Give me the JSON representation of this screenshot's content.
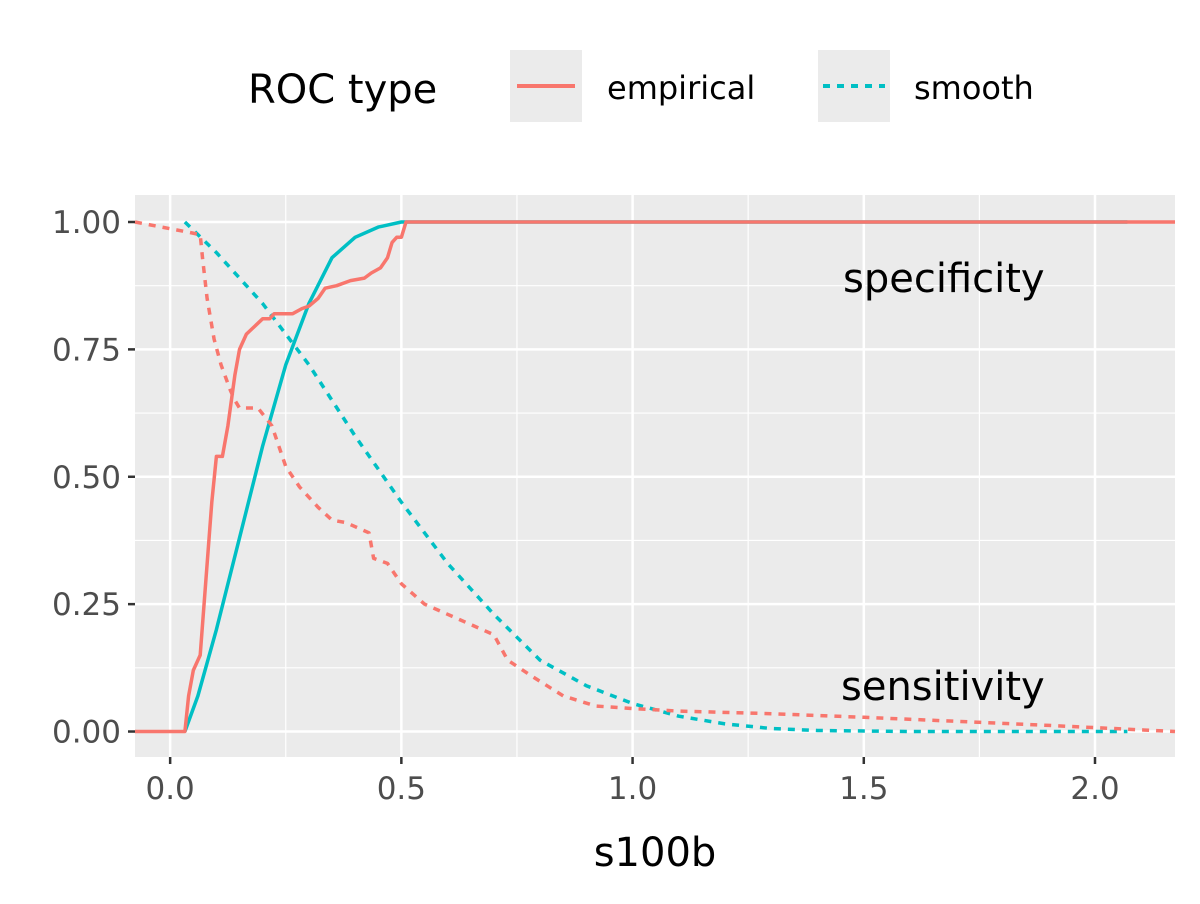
{
  "chart_data": {
    "type": "line",
    "title": "",
    "xlabel": "s100b",
    "ylabel": "",
    "xlim": [
      -0.076,
      2.173
    ],
    "ylim": [
      -0.05,
      1.053
    ],
    "x_ticks": [
      0.0,
      0.5,
      1.0,
      1.5,
      2.0
    ],
    "x_tick_labels": [
      "0.0",
      "0.5",
      "1.0",
      "1.5",
      "2.0"
    ],
    "y_ticks": [
      0,
      0.25,
      0.5,
      0.75,
      1.0
    ],
    "y_tick_labels": [
      "0.00",
      "0.25",
      "0.50",
      "0.75",
      "1.00"
    ],
    "grid": true,
    "legend": {
      "title": "ROC type",
      "placement": "top",
      "entries": [
        {
          "label": "empirical",
          "color": "#F8766D",
          "dash": "solid"
        },
        {
          "label": "smooth",
          "color": "#00BFC4",
          "dash": "dotted"
        }
      ]
    },
    "annotations": [
      {
        "text": "specificity",
        "x": 1.45,
        "y": 0.88
      },
      {
        "text": "sensitivity",
        "x": 1.45,
        "y": 0.08
      }
    ],
    "series": [
      {
        "name": "empirical specificity",
        "color": "#F8766D",
        "dash": "solid",
        "points": [
          [
            -0.076,
            0
          ],
          [
            0.032,
            0
          ],
          [
            0.04,
            0.07
          ],
          [
            0.05,
            0.12
          ],
          [
            0.065,
            0.15
          ],
          [
            0.09,
            0.45
          ],
          [
            0.1,
            0.54
          ],
          [
            0.113,
            0.54
          ],
          [
            0.125,
            0.6
          ],
          [
            0.14,
            0.7
          ],
          [
            0.15,
            0.75
          ],
          [
            0.165,
            0.78
          ],
          [
            0.2,
            0.81
          ],
          [
            0.215,
            0.81
          ],
          [
            0.225,
            0.82
          ],
          [
            0.265,
            0.82
          ],
          [
            0.285,
            0.83
          ],
          [
            0.3,
            0.835
          ],
          [
            0.32,
            0.85
          ],
          [
            0.335,
            0.87
          ],
          [
            0.36,
            0.875
          ],
          [
            0.39,
            0.885
          ],
          [
            0.42,
            0.89
          ],
          [
            0.435,
            0.9
          ],
          [
            0.455,
            0.91
          ],
          [
            0.47,
            0.93
          ],
          [
            0.48,
            0.96
          ],
          [
            0.49,
            0.97
          ],
          [
            0.5,
            0.97
          ],
          [
            0.51,
            1.0
          ],
          [
            2.173,
            1.0
          ]
        ]
      },
      {
        "name": "smooth specificity",
        "color": "#00BFC4",
        "dash": "solid",
        "points": [
          [
            0.032,
            0
          ],
          [
            0.06,
            0.07
          ],
          [
            0.1,
            0.2
          ],
          [
            0.15,
            0.38
          ],
          [
            0.2,
            0.56
          ],
          [
            0.25,
            0.72
          ],
          [
            0.3,
            0.84
          ],
          [
            0.35,
            0.93
          ],
          [
            0.4,
            0.97
          ],
          [
            0.45,
            0.99
          ],
          [
            0.5,
            1.0
          ],
          [
            0.6,
            1.0
          ],
          [
            2.07,
            1.0
          ]
        ]
      },
      {
        "name": "empirical sensitivity",
        "color": "#F8766D",
        "dash": "dotted",
        "points": [
          [
            -0.076,
            1.0
          ],
          [
            0.04,
            0.98
          ],
          [
            0.065,
            0.975
          ],
          [
            0.07,
            0.93
          ],
          [
            0.08,
            0.85
          ],
          [
            0.095,
            0.77
          ],
          [
            0.11,
            0.72
          ],
          [
            0.13,
            0.67
          ],
          [
            0.14,
            0.65
          ],
          [
            0.15,
            0.635
          ],
          [
            0.19,
            0.635
          ],
          [
            0.22,
            0.6
          ],
          [
            0.25,
            0.52
          ],
          [
            0.28,
            0.48
          ],
          [
            0.32,
            0.44
          ],
          [
            0.35,
            0.415
          ],
          [
            0.38,
            0.41
          ],
          [
            0.43,
            0.39
          ],
          [
            0.44,
            0.34
          ],
          [
            0.47,
            0.33
          ],
          [
            0.5,
            0.29
          ],
          [
            0.55,
            0.25
          ],
          [
            0.6,
            0.23
          ],
          [
            0.65,
            0.21
          ],
          [
            0.7,
            0.19
          ],
          [
            0.73,
            0.14
          ],
          [
            0.78,
            0.11
          ],
          [
            0.85,
            0.07
          ],
          [
            0.92,
            0.05
          ],
          [
            1.0,
            0.045
          ],
          [
            1.1,
            0.04
          ],
          [
            1.3,
            0.035
          ],
          [
            1.5,
            0.028
          ],
          [
            1.7,
            0.02
          ],
          [
            1.9,
            0.012
          ],
          [
            2.173,
            0.0
          ]
        ]
      },
      {
        "name": "smooth sensitivity",
        "color": "#00BFC4",
        "dash": "dotted",
        "points": [
          [
            0.032,
            1.0
          ],
          [
            0.1,
            0.94
          ],
          [
            0.2,
            0.84
          ],
          [
            0.3,
            0.72
          ],
          [
            0.4,
            0.58
          ],
          [
            0.5,
            0.45
          ],
          [
            0.6,
            0.33
          ],
          [
            0.7,
            0.23
          ],
          [
            0.8,
            0.14
          ],
          [
            0.9,
            0.09
          ],
          [
            1.0,
            0.055
          ],
          [
            1.1,
            0.03
          ],
          [
            1.2,
            0.015
          ],
          [
            1.3,
            0.006
          ],
          [
            1.4,
            0.002
          ],
          [
            1.6,
            0
          ],
          [
            2.07,
            0
          ]
        ]
      }
    ]
  }
}
